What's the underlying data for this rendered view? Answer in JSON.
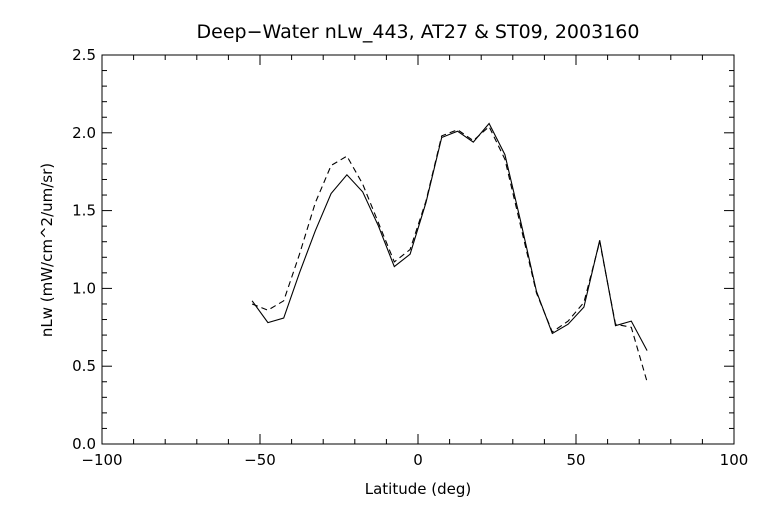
{
  "chart_data": {
    "type": "line",
    "title": "Deep−Water nLw_443, AT27 & ST09, 2003160",
    "xlabel": "Latitude (deg)",
    "ylabel": "nLw (mW/cm^2/um/sr)",
    "xlim": [
      -100,
      100
    ],
    "ylim": [
      0,
      2.5
    ],
    "x_ticks": [
      -100,
      -50,
      0,
      50,
      100
    ],
    "x_tick_labels": [
      "−100",
      "−50",
      "0",
      "50",
      "100"
    ],
    "y_ticks": [
      0,
      0.5,
      1.0,
      1.5,
      2.0,
      2.5
    ],
    "y_tick_labels": [
      "0.0",
      "0.5",
      "1.0",
      "1.5",
      "2.0",
      "2.5"
    ],
    "grid": false,
    "series": [
      {
        "style": "solid",
        "x": [
          -52.5,
          -47.5,
          -42.5,
          -37.5,
          -32.5,
          -27.5,
          -22.5,
          -17.5,
          -12.5,
          -7.5,
          -2.5,
          2.5,
          7.5,
          12.5,
          17.5,
          22.5,
          27.5,
          32.5,
          37.5,
          42.5,
          47.5,
          52.5,
          57.5,
          62.5,
          67.5,
          72.5
        ],
        "y": [
          0.92,
          0.78,
          0.81,
          1.1,
          1.37,
          1.61,
          1.73,
          1.62,
          1.4,
          1.14,
          1.22,
          1.55,
          1.97,
          2.01,
          1.94,
          2.06,
          1.86,
          1.43,
          0.98,
          0.71,
          0.77,
          0.88,
          1.31,
          0.76,
          0.79,
          0.6
        ]
      },
      {
        "style": "dashed",
        "x": [
          -52.5,
          -47.5,
          -42.5,
          -37.5,
          -32.5,
          -27.5,
          -22.5,
          -17.5,
          -12.5,
          -7.5,
          -2.5,
          2.5,
          7.5,
          12.5,
          17.5,
          22.5,
          27.5,
          32.5,
          37.5,
          42.5,
          47.5,
          52.5,
          57.5,
          62.5,
          67.5,
          72.5
        ],
        "y": [
          0.9,
          0.86,
          0.92,
          1.22,
          1.55,
          1.79,
          1.85,
          1.67,
          1.42,
          1.17,
          1.25,
          1.56,
          1.98,
          2.02,
          1.95,
          2.04,
          1.83,
          1.4,
          0.97,
          0.72,
          0.79,
          0.91,
          1.3,
          0.77,
          0.75,
          0.4
        ]
      }
    ]
  }
}
